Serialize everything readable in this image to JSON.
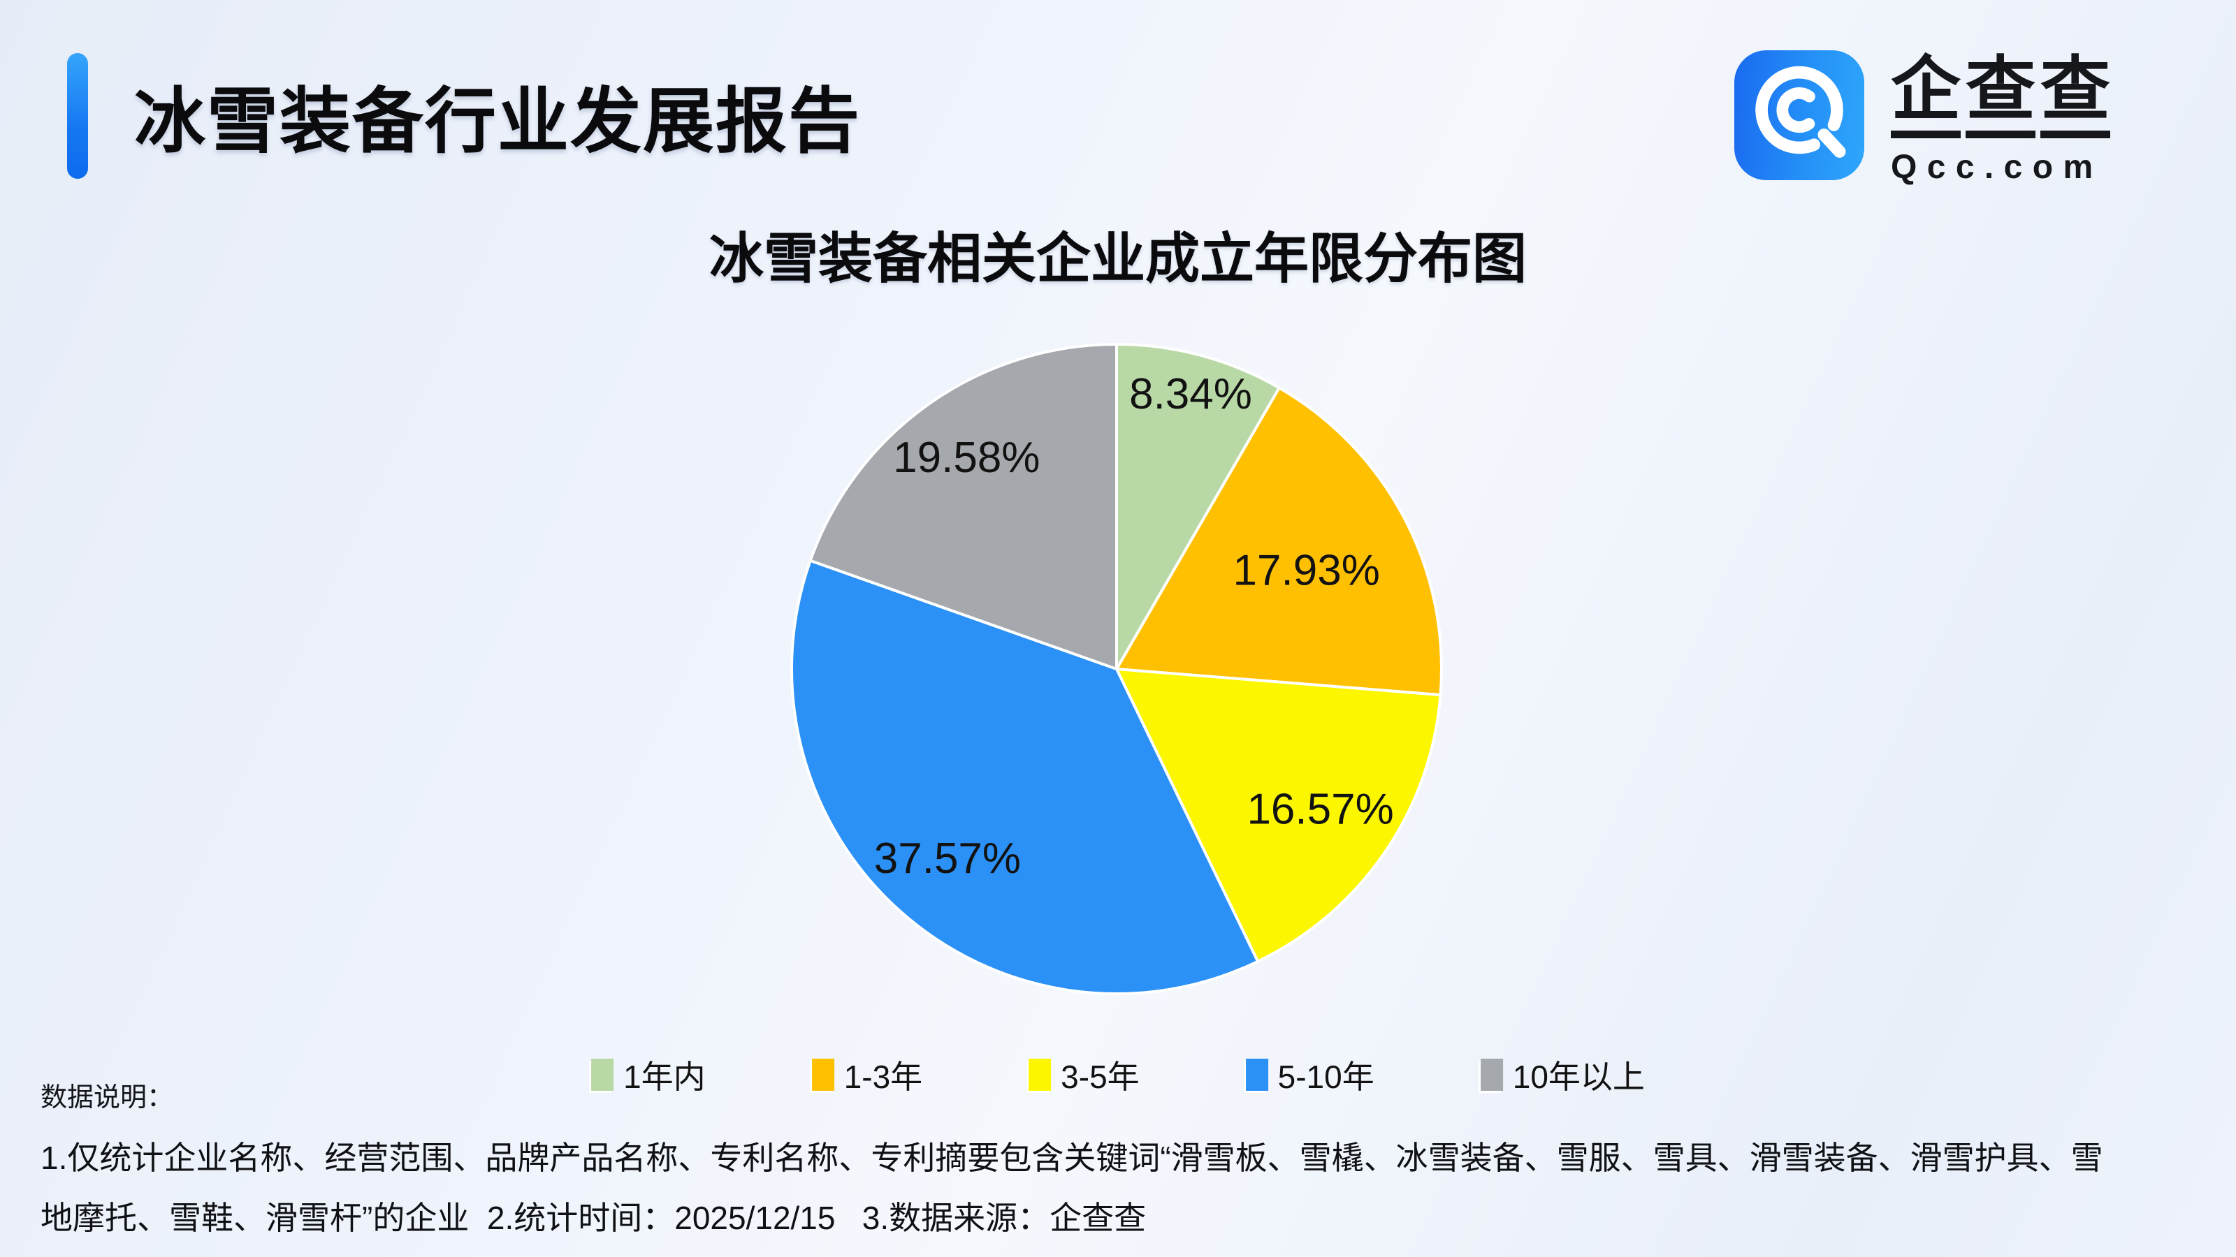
{
  "header": {
    "title": "冰雪装备行业发展报告"
  },
  "logo": {
    "brand": "企查查",
    "domain": "Qcc.com"
  },
  "chart_data": {
    "type": "pie",
    "title": "冰雪装备相关企业成立年限分布图",
    "categories": [
      "1年内",
      "1-3年",
      "3-5年",
      "5-10年",
      "10年以上"
    ],
    "values": [
      8.34,
      17.93,
      16.57,
      37.57,
      19.58
    ],
    "colors": [
      "#b8d8a6",
      "#ffc002",
      "#fcf700",
      "#2b91f7",
      "#a5a8ac"
    ],
    "label_format": "{value}%",
    "start_angle_deg": 0,
    "direction": "clockwise",
    "legend_position": "bottom",
    "slice_border_color": "#ffffff"
  },
  "notes": {
    "heading": "数据说明：",
    "line1": "1.仅统计企业名称、经营范围、品牌产品名称、专利名称、专利摘要包含关键词“滑雪板、雪橇、冰雪装备、雪服、雪具、滑雪装备、滑雪护具、雪",
    "line2": "地摩托、雪鞋、滑雪杆”的企业  2.统计时间：2025/12/15   3.数据来源：企查查"
  }
}
